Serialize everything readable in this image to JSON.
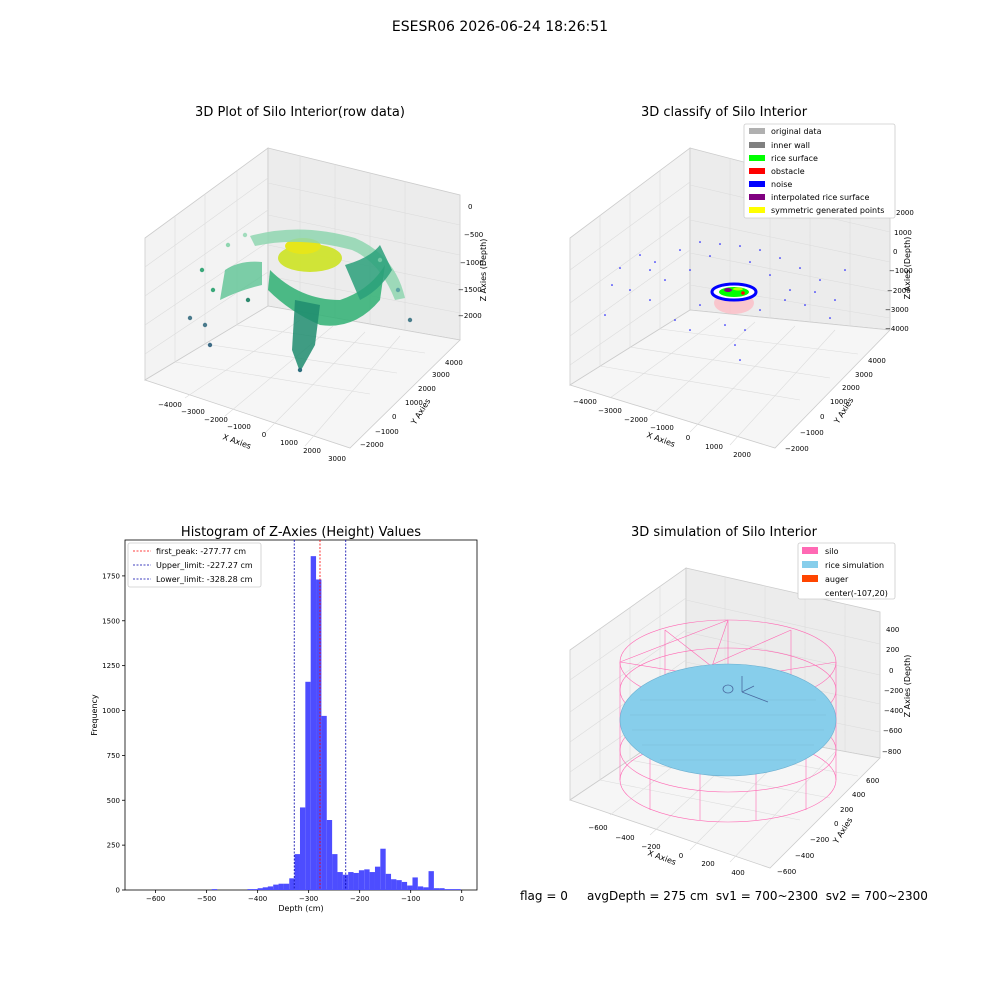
{
  "suptitle": "ESESR06 2026-06-24 18:26:51",
  "status": {
    "flag": "flag = 0",
    "avg_depth": "avgDepth = 275 cm",
    "sv1": "sv1 = 700~2300",
    "sv2": "sv2 = 700~2300"
  },
  "colors": {
    "original": "#b0b0b0",
    "inner_wall": "#808080",
    "rice_surface": "#00ff00",
    "obstacle": "#ff0000",
    "noise": "#0000ff",
    "interpolated": "#800080",
    "symmetric": "#ffff00",
    "silo": "#ff69b4",
    "rice_sim": "#87ceeb",
    "auger": "#ff4500",
    "hist_bar": "#4d4dff"
  },
  "chart_data": [
    {
      "type": "scatter",
      "title": "3D Plot of Silo Interior(row data)",
      "xlabel": "X Axies",
      "ylabel": "Y Axies",
      "zlabel": "Z Axies (Depth)",
      "xticks": [
        "−4000",
        "−3000",
        "−2000",
        "−1000",
        "0",
        "1000",
        "2000",
        "3000"
      ],
      "yticks": [
        "−2000",
        "−1000",
        "0",
        "1000",
        "2000",
        "3000",
        "4000"
      ],
      "zticks": [
        "0",
        "−500",
        "−1000",
        "−1500",
        "−2000"
      ],
      "xlim": [
        -4500,
        3000
      ],
      "ylim": [
        -2500,
        4500
      ],
      "zlim": [
        -2500,
        0
      ]
    },
    {
      "type": "scatter",
      "title": "3D classify of Silo Interior",
      "xlabel": "X Axies",
      "ylabel": "Y Axies",
      "zlabel": "Z Axies (Depth)",
      "xticks": [
        "−4000",
        "−3000",
        "−2000",
        "−1000",
        "0",
        "1000",
        "2000"
      ],
      "yticks": [
        "−2000",
        "−1000",
        "0",
        "1000",
        "2000",
        "3000",
        "4000"
      ],
      "zticks": [
        "2000",
        "1000",
        "0",
        "−1000",
        "−2000",
        "−3000",
        "−4000"
      ],
      "legend": [
        "original data",
        "inner wall",
        "rice surface",
        "obstacle",
        "noise",
        "interpolated rice surface",
        "symmetric generated points"
      ],
      "legend_loc": "upper-right"
    },
    {
      "type": "bar",
      "title": "Histogram of Z-Axies (Height) Values",
      "xlabel": "Depth (cm)",
      "ylabel": "Frequency",
      "xlim": [
        -660,
        30
      ],
      "ylim": [
        0,
        1950
      ],
      "xticks": [
        "−600",
        "−500",
        "−400",
        "−300",
        "−200",
        "−100",
        "0"
      ],
      "xtick_values": [
        -600,
        -500,
        -400,
        -300,
        -200,
        -100,
        0
      ],
      "yticks": [
        "0",
        "250",
        "500",
        "750",
        "1000",
        "1250",
        "1500",
        "1750"
      ],
      "ytick_values": [
        0,
        250,
        500,
        750,
        1000,
        1250,
        1500,
        1750
      ],
      "bin_width": 10.5,
      "bin_starts": [
        -490,
        -420,
        -410,
        -400,
        -390,
        -380,
        -369.5,
        -359,
        -348.5,
        -338,
        -327.5,
        -317,
        -306.5,
        -296,
        -285.5,
        -275,
        -264.5,
        -254,
        -243.5,
        -233,
        -222.5,
        -212,
        -201.5,
        -191,
        -180.5,
        -170,
        -159.5,
        -149,
        -138.5,
        -128,
        -117.5,
        -107,
        -96.5,
        -86,
        -75.5,
        -65,
        -54.5,
        -44,
        -33.5,
        -23,
        -12.5
      ],
      "values": [
        5,
        5,
        5,
        10,
        15,
        20,
        30,
        35,
        35,
        65,
        200,
        460,
        1160,
        1860,
        1730,
        970,
        390,
        200,
        100,
        85,
        100,
        95,
        110,
        115,
        100,
        130,
        230,
        90,
        60,
        55,
        45,
        25,
        70,
        20,
        15,
        105,
        10,
        10,
        5,
        5,
        5
      ],
      "legend": [
        "first_peak: -277.77 cm",
        "Upper_limit: -227.27 cm",
        "Lower_limit: -328.28 cm"
      ],
      "legend_loc": "upper-left",
      "vlines": [
        {
          "value": -277.77,
          "color": "#ff0000"
        },
        {
          "value": -227.27,
          "color": "#0000aa"
        },
        {
          "value": -328.28,
          "color": "#0000aa"
        }
      ]
    },
    {
      "type": "scatter",
      "title": "3D simulation of Silo Interior",
      "xlabel": "X Axies",
      "ylabel": "Y Axies",
      "zlabel": "Z Axies (Depth)",
      "xticks": [
        "−600",
        "−400",
        "−200",
        "0",
        "200",
        "400"
      ],
      "yticks": [
        "−600",
        "−400",
        "−200",
        "0",
        "200",
        "400",
        "600"
      ],
      "zticks": [
        "400",
        "200",
        "0",
        "−200",
        "−400",
        "−600",
        "−800"
      ],
      "legend": [
        "silo",
        "rice simulation",
        "auger",
        "center(-107,20)"
      ],
      "legend_loc": "upper-right"
    }
  ]
}
